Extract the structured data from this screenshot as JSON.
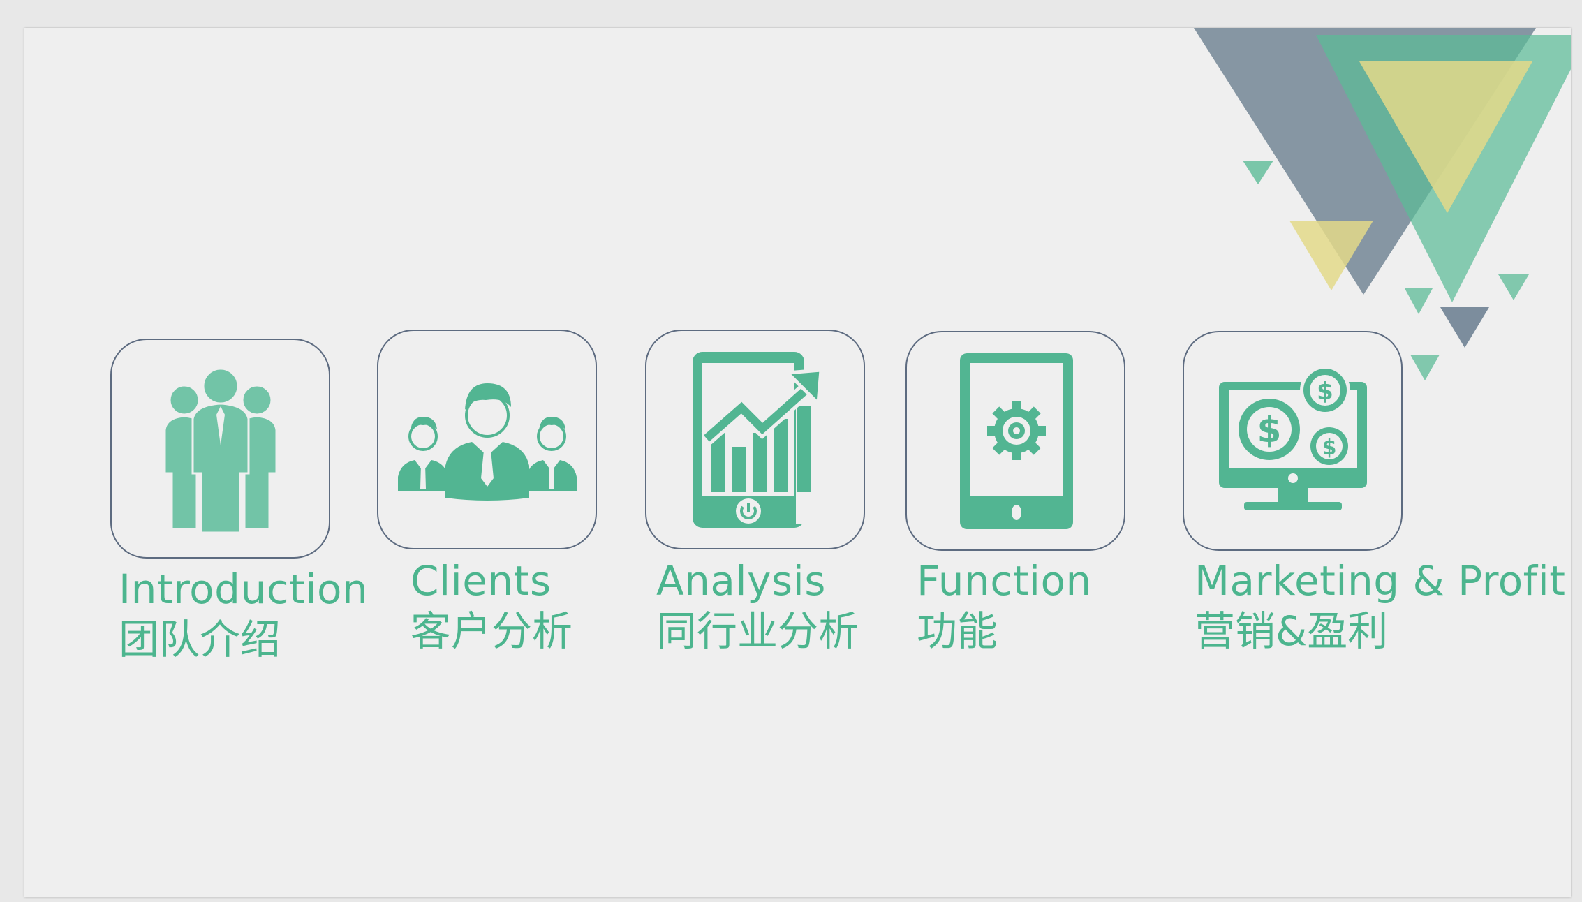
{
  "colors": {
    "accent": "#4cb58e",
    "icon_fill": "#52b592",
    "icon_fill_light": "#72c4a7",
    "card_border": "#5d6b80",
    "tri_slate": "#6f8293",
    "tri_green": "#5cbb97",
    "tri_yellow": "#e3d98a"
  },
  "items": [
    {
      "en": "Introduction",
      "zh": "团队介绍",
      "icon": "team-icon"
    },
    {
      "en": "Clients",
      "zh": "客户分析",
      "icon": "clients-icon"
    },
    {
      "en": "Analysis",
      "zh": "同行业分析",
      "icon": "tablet-chart-icon"
    },
    {
      "en": "Function",
      "zh": "功能",
      "icon": "tablet-gear-icon"
    },
    {
      "en": "Marketing & Profit",
      "zh": "营销&盈利",
      "icon": "monitor-dollar-icon"
    }
  ]
}
